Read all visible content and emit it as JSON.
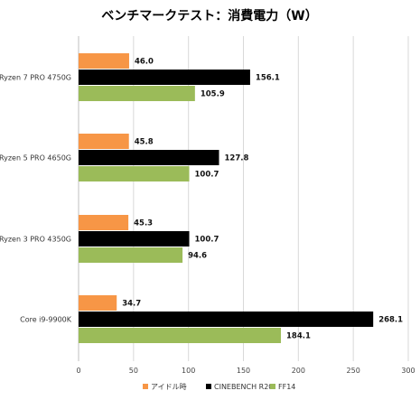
{
  "chart_data": {
    "type": "bar",
    "orientation": "horizontal",
    "title": "ベンチマークテスト：消費電力（W）",
    "categories": [
      "Ryzen 7 PRO 4750G",
      "Ryzen 5 PRO 4650G",
      "Ryzen 3 PRO 4350G",
      "Core i9-9900K"
    ],
    "series": [
      {
        "name": "アイドル時",
        "color": "#F79646",
        "values": [
          46.0,
          45.8,
          45.3,
          34.7
        ],
        "labels": [
          "46.0",
          "45.8",
          "45.3",
          "34.7"
        ]
      },
      {
        "name": "CINEBENCH R20",
        "color": "#000000",
        "values": [
          156.1,
          127.8,
          100.7,
          268.1
        ],
        "labels": [
          "156.1",
          "127.8",
          "100.7",
          "268.1"
        ]
      },
      {
        "name": "FF14",
        "color": "#9BBB59",
        "values": [
          105.9,
          100.7,
          94.6,
          184.1
        ],
        "labels": [
          "105.9",
          "100.7",
          "94.6",
          "184.1"
        ]
      }
    ],
    "xlim": [
      0,
      300
    ],
    "xticks": [
      "0",
      "50",
      "100",
      "150",
      "200",
      "250",
      "300"
    ],
    "grid": "vertical",
    "legend": "bottom"
  }
}
